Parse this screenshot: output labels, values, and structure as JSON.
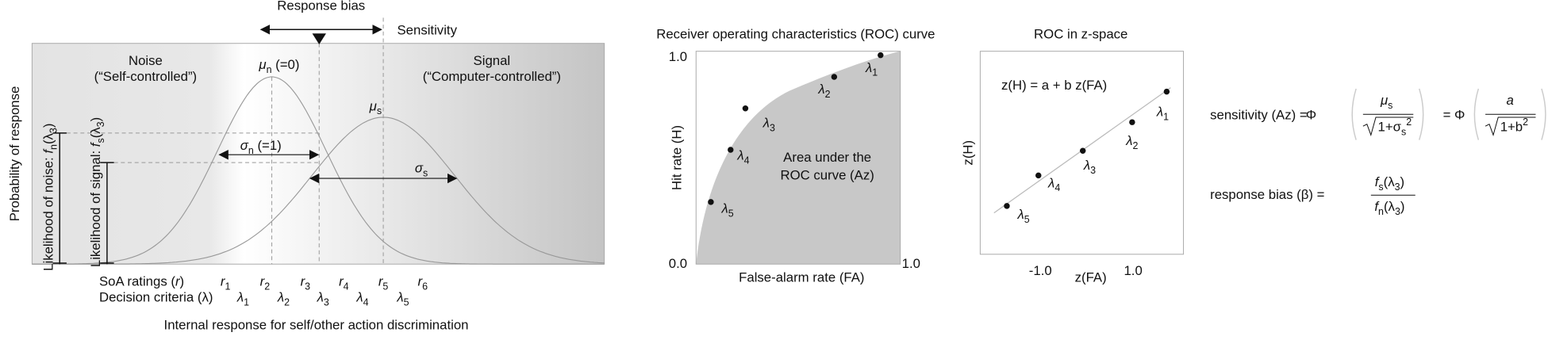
{
  "panel_a": {
    "response_bias": "Response bias",
    "sensitivity": "Sensitivity",
    "noise": [
      "Noise",
      "(“Self-controlled”)"
    ],
    "signal": [
      "Signal",
      "(“Computer-controlled”)"
    ],
    "mu_n": [
      "μ",
      "n",
      " (=0)"
    ],
    "mu_s": [
      "μ",
      "s"
    ],
    "sigma_n": [
      "σ",
      "n",
      " (=1)"
    ],
    "sigma_s": [
      "σ",
      "s"
    ],
    "y_label": "Probability of response",
    "likelihood_noise": [
      "Likelihood of noise: ",
      "f",
      "n",
      "(λ",
      "3",
      ")"
    ],
    "likelihood_signal": [
      "Likelihood of signal: ",
      "f",
      "s",
      "(λ",
      "3",
      ")"
    ],
    "ratings_label": [
      "SoA ratings (",
      "r",
      ")"
    ],
    "ratings": [
      [
        "r",
        "1"
      ],
      [
        "r",
        "2"
      ],
      [
        "r",
        "3"
      ],
      [
        "r",
        "4"
      ],
      [
        "r",
        "5"
      ],
      [
        "r",
        "6"
      ]
    ],
    "criteria_label": "Decision criteria (λ)",
    "criteria": [
      [
        "λ",
        "1"
      ],
      [
        "λ",
        "2"
      ],
      [
        "λ",
        "3"
      ],
      [
        "λ",
        "4"
      ],
      [
        "λ",
        "5"
      ]
    ],
    "x_label": "Internal response for self/other action discrimination"
  },
  "panel_b": {
    "title": "Receiver operating characteristics (ROC) curve",
    "y_label": "Hit rate (H)",
    "x_label": "False-alarm rate (FA)",
    "origin": "0.0",
    "y_max": "1.0",
    "x_max": "1.0",
    "area_label": [
      "Area under the",
      "ROC curve (Az)"
    ],
    "points": [
      [
        "λ",
        "1"
      ],
      [
        "λ",
        "2"
      ],
      [
        "λ",
        "3"
      ],
      [
        "λ",
        "4"
      ],
      [
        "λ",
        "5"
      ]
    ]
  },
  "panel_c": {
    "title": "ROC in z-space",
    "equation": "z(H) = a + b z(FA)",
    "y_label": "z(H)",
    "x_label": "z(FA)",
    "x_ticks": [
      "-1.0",
      "1.0"
    ],
    "points": [
      [
        "λ",
        "1"
      ],
      [
        "λ",
        "2"
      ],
      [
        "λ",
        "3"
      ],
      [
        "λ",
        "4"
      ],
      [
        "λ",
        "5"
      ]
    ]
  },
  "formulas": {
    "sensitivity": {
      "lhs": "sensitivity (Az) = ",
      "phi": "Φ",
      "mu": [
        "μ",
        "s"
      ],
      "root": [
        "1+σ",
        "s",
        "2"
      ],
      "eq": "= Φ",
      "a": "a",
      "root2": [
        "1+b",
        "2"
      ]
    },
    "response_bias": {
      "lhs": "response bias (β) = ",
      "num": [
        "f",
        "s",
        "(λ",
        "3",
        ")"
      ],
      "den": [
        "f",
        "n",
        "(λ",
        "3",
        ")"
      ]
    }
  }
}
